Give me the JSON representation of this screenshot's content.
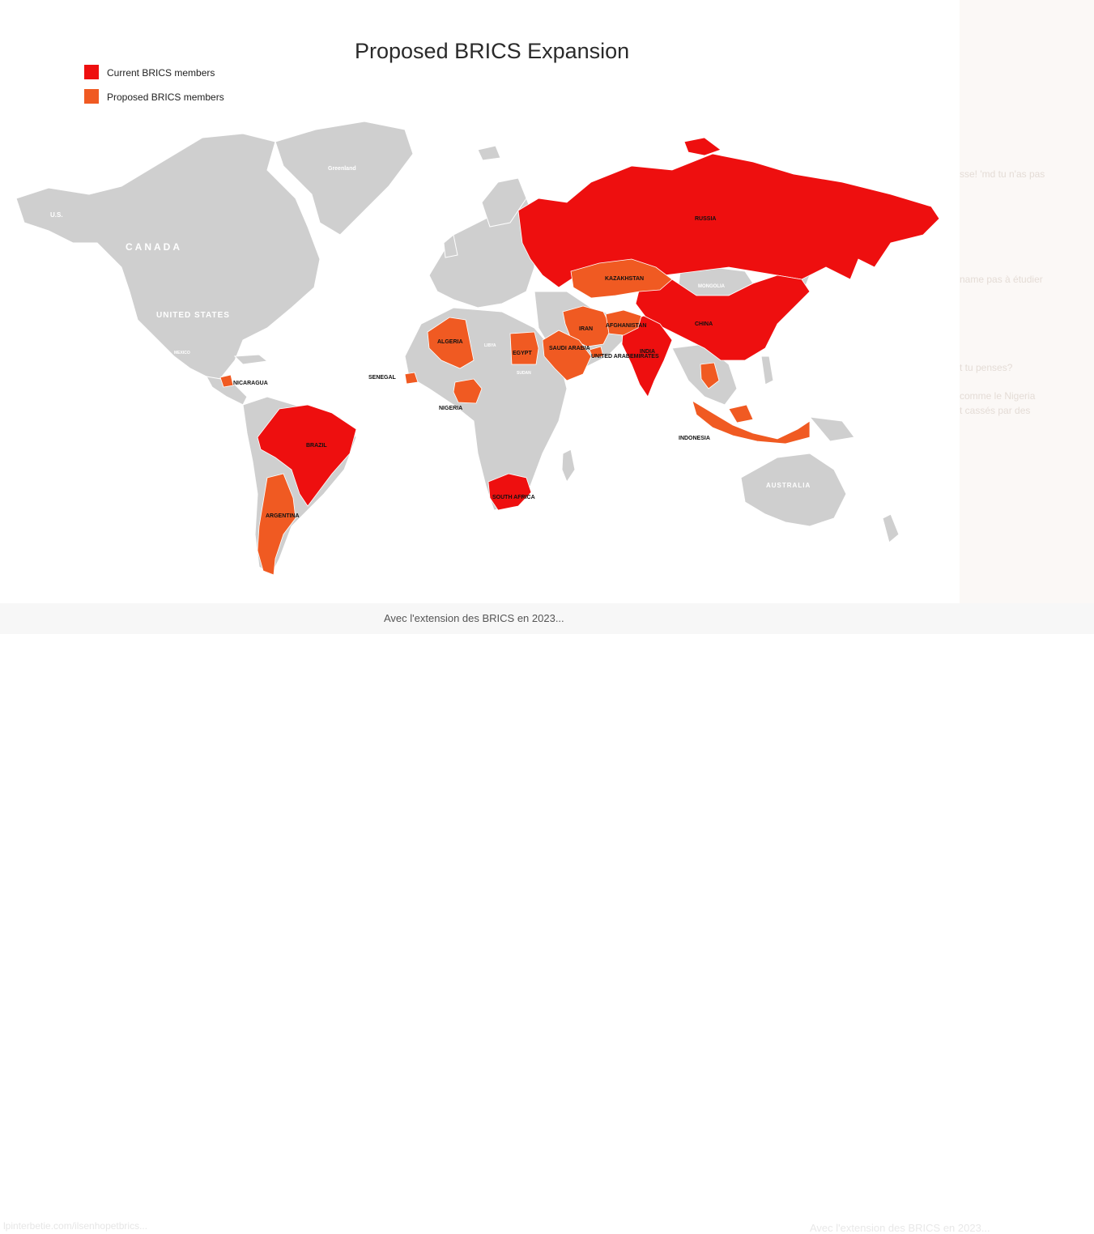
{
  "map": {
    "title": "Proposed BRICS Expansion",
    "legend": {
      "current": {
        "label": "Current BRICS members",
        "color": "#ee0f0f"
      },
      "proposed": {
        "label": "Proposed BRICS members",
        "color": "#f05a22"
      }
    },
    "land_color": "#cfcfcf",
    "labels": {
      "russia": "RUSSIA",
      "china": "CHINA",
      "india": "INDIA",
      "brazil": "BRAZIL",
      "south_africa": "SOUTH AFRICA",
      "kazakhstan": "KAZAKHSTAN",
      "iran": "IRAN",
      "afghanistan": "AFGHANISTAN",
      "algeria": "ALGERIA",
      "egypt": "EGYPT",
      "saudi_arabia": "SAUDI ARABIA",
      "uae": "UNITED ARABEMIRATES",
      "senegal": "SENEGAL",
      "nigeria": "NIGERIA",
      "indonesia": "INDONESIA",
      "argentina": "ARGENTINA",
      "nicaragua": "NICARAGUA",
      "canada": "CANADA",
      "united_states": "UNITED STATES",
      "us": "U.S.",
      "greenland": "Greenland",
      "mongolia": "MONGOLIA",
      "australia": "AUSTRALIA",
      "mexico": "MEXICO",
      "libya": "LIBYA",
      "sudan": "SUDAN"
    }
  },
  "caption": "Avec l'extension des BRICS en 2023...",
  "ghost": {
    "url": "lpinterbetie.com/ilsenhopetbrics...",
    "right_caption": "Avec l'extension des BRICS en 2023...",
    "side": [
      "sse! 'md tu n'as pas",
      "name pas à étudier",
      "t tu penses?",
      "comme le Nigeria",
      "t cassés par des"
    ]
  }
}
